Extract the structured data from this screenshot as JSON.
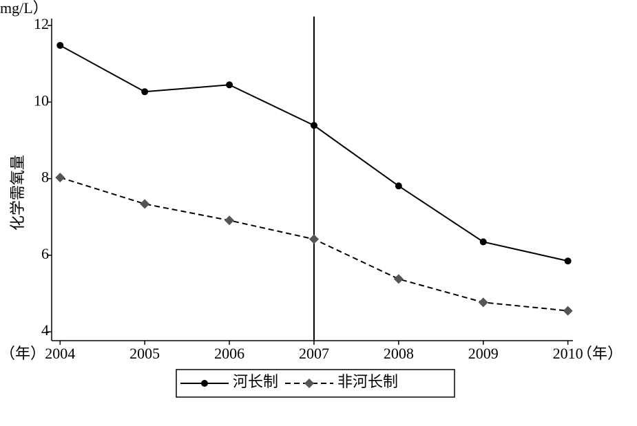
{
  "chart_data": {
    "type": "line",
    "y_label": "化学需氧量",
    "y_unit": "mg/L）",
    "x_unit": "（年）",
    "x": [
      2004,
      2005,
      2006,
      2007,
      2008,
      2009,
      2010
    ],
    "xlim": [
      2003.9,
      2010.06
    ],
    "xticks": [
      2004,
      2005,
      2006,
      2007,
      2008,
      2009,
      2010
    ],
    "ylim": [
      3.77,
      12.18
    ],
    "yticks": [
      4,
      6,
      8,
      10,
      12
    ],
    "vline": 2007,
    "legend": "bottom",
    "series": [
      {
        "name": "河长制",
        "color": "#000000",
        "line_style": "solid",
        "marker": "circle",
        "values": [
          11.48,
          10.27,
          10.45,
          9.39,
          7.81,
          6.35,
          5.85
        ]
      },
      {
        "name": "非河长制",
        "color": "#555555",
        "line_style": "dashed",
        "marker": "diamond",
        "values": [
          8.03,
          7.34,
          6.91,
          6.42,
          5.38,
          4.77,
          4.55
        ]
      }
    ]
  }
}
